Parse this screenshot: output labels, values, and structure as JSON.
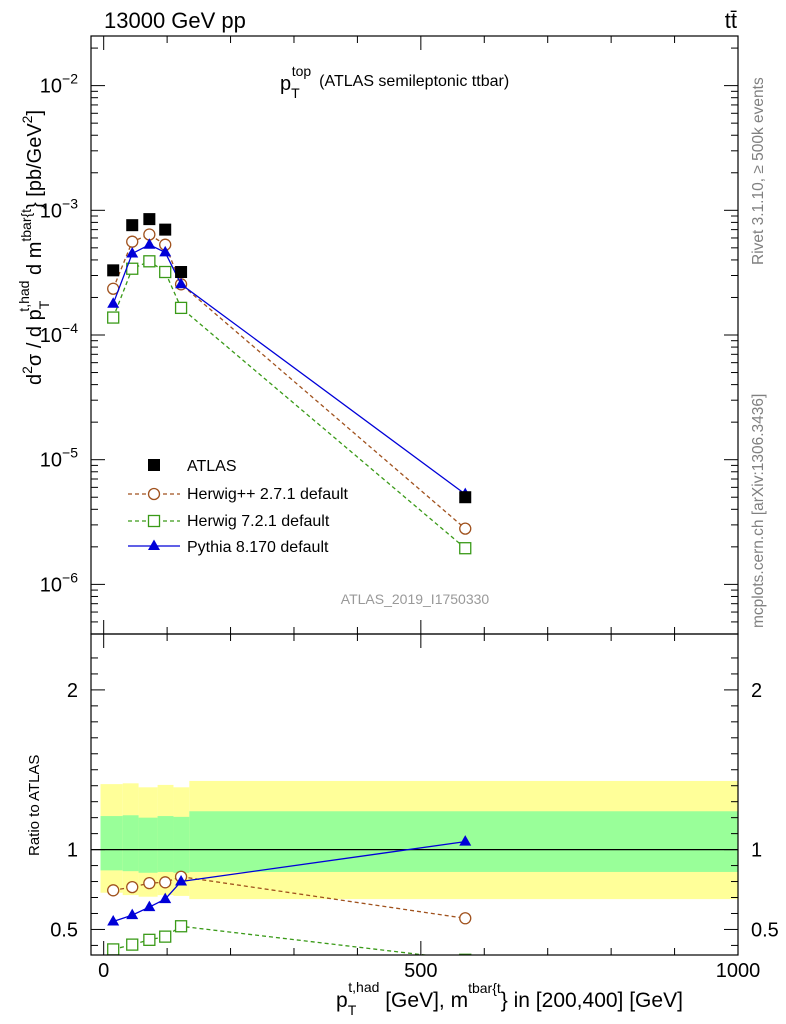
{
  "header": {
    "energy_label": "13000 GeV pp",
    "process_label": "tt̄"
  },
  "side_labels": {
    "rivet": "Rivet 3.1.10, ≥ 500k events",
    "mcplots": "mcplots.cern.ch [arXiv:1306.3436]"
  },
  "chart_data": [
    {
      "type": "scatter",
      "panel": "main",
      "title": "p_T^top (ATLAS semileptonic ttbar)",
      "title_parts": {
        "main": "p",
        "sub": "T",
        "sup": "top",
        "rest": "(ATLAS semileptonic ttbar)"
      },
      "watermark": "ATLAS_2019_I1750330",
      "ylabel_parts": {
        "a": "d",
        "a_sup": "2",
        "b": "σ / d p",
        "b_sub": "T",
        "b_sup": "t,had",
        "c": " d m",
        "c_sup": "tbar{t",
        "d": "} [pb/GeV",
        "d_sup": "2",
        "e": "]"
      },
      "yscale": "log",
      "ylim": [
        4e-07,
        0.025
      ],
      "xlim": [
        -20,
        1000
      ],
      "y_tick_labels": [
        {
          "mantissa": "10",
          "exp": "−2",
          "value": 0.01
        },
        {
          "mantissa": "10",
          "exp": "−3",
          "value": 0.001
        },
        {
          "mantissa": "10",
          "exp": "−4",
          "value": 0.0001
        },
        {
          "mantissa": "10",
          "exp": "−5",
          "value": 1e-05
        },
        {
          "mantissa": "10",
          "exp": "−6",
          "value": 1e-06
        }
      ],
      "legend_position": "bottom-left",
      "series": [
        {
          "name": "ATLAS",
          "color": "#000000",
          "marker": "filled-square",
          "line": "none",
          "x": [
            15,
            45,
            72,
            97,
            122,
            570
          ],
          "y": [
            0.00033,
            0.00076,
            0.00085,
            0.0007,
            0.00032,
            5e-06
          ]
        },
        {
          "name": "Herwig++ 2.7.1 default",
          "color": "#a0521e",
          "marker": "open-circle",
          "line": "dashed",
          "x": [
            15,
            45,
            72,
            97,
            122,
            570
          ],
          "y": [
            0.000235,
            0.00056,
            0.00064,
            0.00053,
            0.000255,
            2.8e-06
          ]
        },
        {
          "name": "Herwig 7.2.1 default",
          "color": "#3a9a18",
          "marker": "open-square",
          "line": "dashed",
          "x": [
            15,
            45,
            72,
            97,
            122,
            570
          ],
          "y": [
            0.000138,
            0.00034,
            0.00039,
            0.00032,
            0.000165,
            1.95e-06
          ]
        },
        {
          "name": "Pythia 8.170 default",
          "color": "#0000d8",
          "marker": "filled-triangle",
          "line": "solid",
          "x": [
            15,
            45,
            72,
            97,
            122,
            570
          ],
          "y": [
            0.000178,
            0.00045,
            0.00053,
            0.00046,
            0.000255,
            5.3e-06
          ]
        }
      ]
    },
    {
      "type": "line",
      "panel": "ratio",
      "ylabel": "Ratio to ATLAS",
      "ylim": [
        0.34,
        2.35
      ],
      "xlim": [
        -20,
        1000
      ],
      "y_tick_labels": [
        "0.5",
        "1",
        "2"
      ],
      "y_tick_values": [
        0.5,
        1,
        2
      ],
      "xlabel_parts": {
        "a": "p",
        "a_sub": "T",
        "a_sup": "t,had",
        "b": " [GeV], m",
        "b_sup": "tbar{t",
        "c": "} in [200,400] [GeV]"
      },
      "x_tick_labels": [
        "0",
        "500",
        "1000"
      ],
      "x_tick_values": [
        0,
        500,
        1000
      ],
      "reference_line": 1,
      "bands": {
        "yellow_color": "#ffff99",
        "green_color": "#99ff99",
        "bins": [
          {
            "x0": -5,
            "x1": 30,
            "yellow": [
              0.73,
              1.41
            ],
            "green": [
              0.87,
              1.21
            ]
          },
          {
            "x0": 30,
            "x1": 55,
            "yellow": [
              0.715,
              1.415
            ],
            "green": [
              0.865,
              1.215
            ]
          },
          {
            "x0": 55,
            "x1": 85,
            "yellow": [
              0.705,
              1.39
            ],
            "green": [
              0.855,
              1.2
            ]
          },
          {
            "x0": 85,
            "x1": 110,
            "yellow": [
              0.715,
              1.405
            ],
            "green": [
              0.86,
              1.21
            ]
          },
          {
            "x0": 110,
            "x1": 135,
            "yellow": [
              0.71,
              1.39
            ],
            "green": [
              0.855,
              1.205
            ]
          },
          {
            "x0": 135,
            "x1": 1000,
            "yellow": [
              0.69,
              1.43
            ],
            "green": [
              0.86,
              1.24
            ]
          }
        ]
      },
      "series": [
        {
          "name": "Herwig++ 2.7.1 default",
          "color": "#a0521e",
          "marker": "open-circle",
          "line": "dashed",
          "x": [
            15,
            45,
            72,
            97,
            122,
            570
          ],
          "y": [
            0.745,
            0.765,
            0.79,
            0.795,
            0.83,
            0.57
          ]
        },
        {
          "name": "Herwig 7.2.1 default",
          "color": "#3a9a18",
          "marker": "open-square",
          "line": "dashed",
          "x": [
            15,
            45,
            72,
            97,
            122,
            570
          ],
          "y": [
            0.375,
            0.405,
            0.435,
            0.455,
            0.52,
            0.31
          ]
        },
        {
          "name": "Pythia 8.170 default",
          "color": "#0000d8",
          "marker": "filled-triangle",
          "line": "solid",
          "x": [
            15,
            45,
            72,
            97,
            122,
            570
          ],
          "y": [
            0.55,
            0.59,
            0.64,
            0.69,
            0.8,
            1.05
          ]
        }
      ]
    }
  ]
}
